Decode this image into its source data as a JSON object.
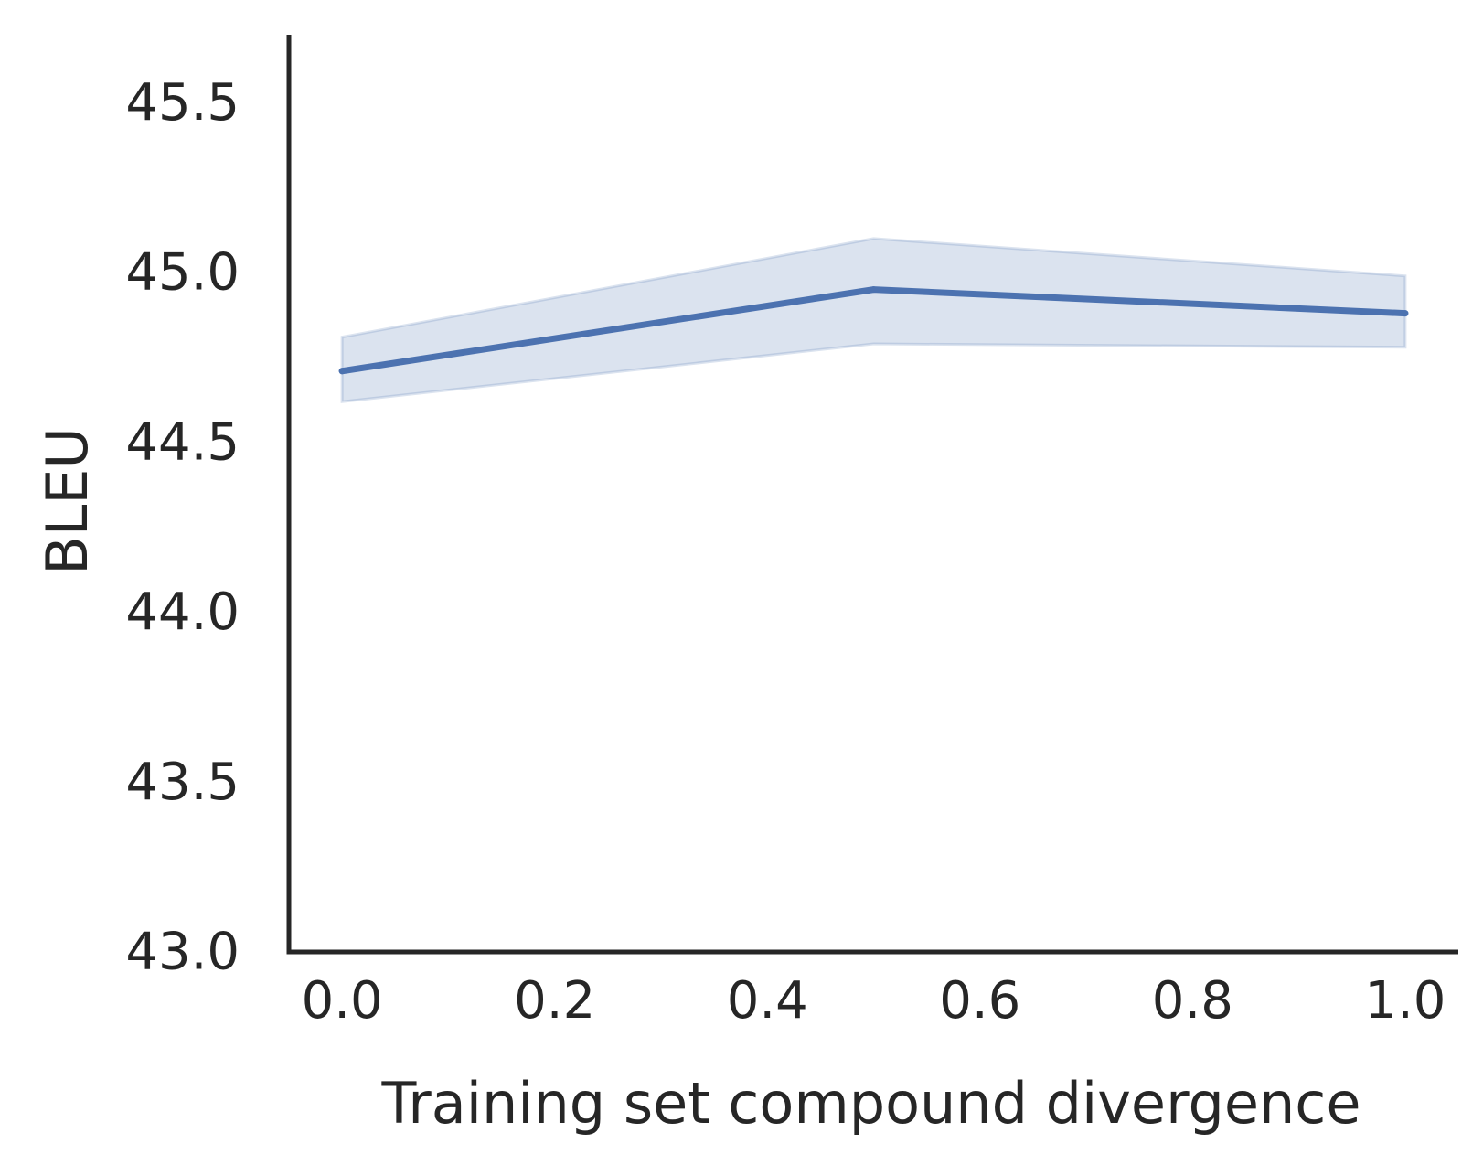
{
  "chart_data": {
    "type": "line",
    "title": "",
    "xlabel": "Training set compound divergence",
    "ylabel": "BLEU",
    "xlim": [
      -0.05,
      1.05
    ],
    "ylim": [
      43.0,
      45.7
    ],
    "xticks": [
      0.0,
      0.2,
      0.4,
      0.6,
      0.8,
      1.0
    ],
    "xtick_labels": [
      "0.0",
      "0.2",
      "0.4",
      "0.6",
      "0.8",
      "1.0"
    ],
    "yticks": [
      43.0,
      43.5,
      44.0,
      44.5,
      45.0,
      45.5
    ],
    "ytick_labels": [
      "43.0",
      "43.5",
      "44.0",
      "44.5",
      "45.0",
      "45.5"
    ],
    "grid": false,
    "legend": "none",
    "series": [
      {
        "x": [
          0.0,
          0.5,
          1.0
        ],
        "y": [
          44.71,
          44.95,
          44.88
        ],
        "ci_lower": [
          44.62,
          44.79,
          44.78
        ],
        "ci_upper": [
          44.81,
          45.1,
          44.99
        ],
        "color": "#4c72b0",
        "band_color": "#4c72b0"
      }
    ]
  }
}
